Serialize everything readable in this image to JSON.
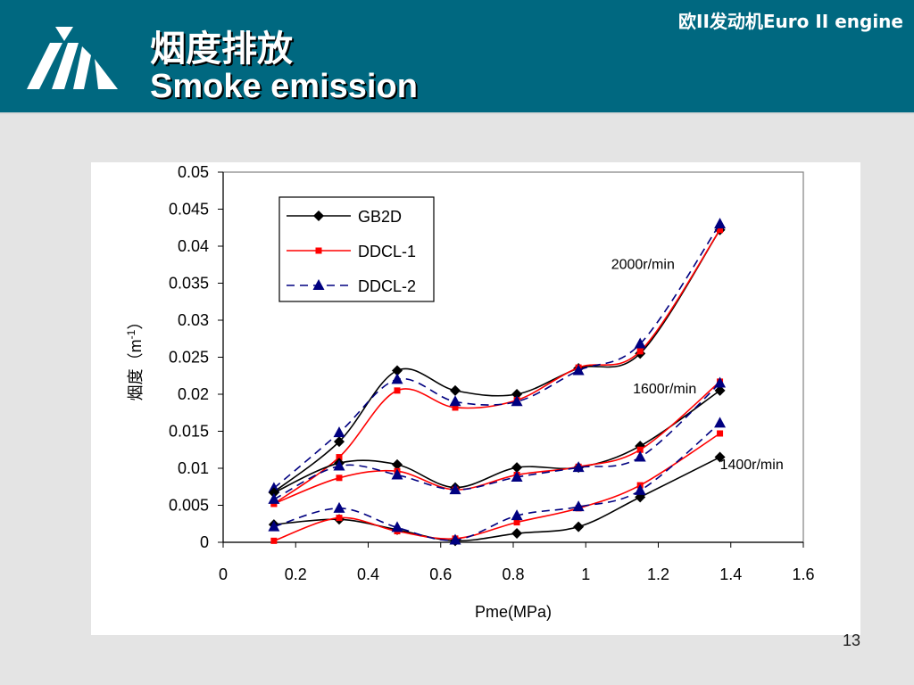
{
  "header": {
    "title_zh": "烟度排放",
    "title_en": "Smoke emission",
    "corner_label": "欧II发动机Euro II engine",
    "background_color": "#006880",
    "logo_icon": "chevron-stripes-logo-icon"
  },
  "page_number": "13",
  "chart_data": {
    "type": "line",
    "xlabel": "Pme(MPa)",
    "ylabel": "烟度（m",
    "ylabel_sup": "-1",
    "ylabel_tail": "）",
    "xlim": [
      0,
      1.6
    ],
    "ylim": [
      0,
      0.05
    ],
    "x_ticks": [
      0,
      0.2,
      0.4,
      0.6,
      0.8,
      1,
      1.2,
      1.4,
      1.6
    ],
    "x_tick_labels": [
      "0",
      "0.2",
      "0.4",
      "0.6",
      "0.8",
      "1",
      "1.2",
      "1.4",
      "1.6"
    ],
    "y_ticks": [
      0,
      0.005,
      0.01,
      0.015,
      0.02,
      0.025,
      0.03,
      0.035,
      0.04,
      0.045,
      0.05
    ],
    "y_tick_labels": [
      "0",
      "0.005",
      "0.01",
      "0.015",
      "0.02",
      "0.025",
      "0.03",
      "0.035",
      "0.04",
      "0.045",
      "0.05"
    ],
    "grid": false,
    "legend_position": "top-left",
    "series_styles": [
      {
        "name": "GB2D",
        "color": "#000000",
        "marker": "diamond",
        "dash": ""
      },
      {
        "name": "DDCL-1",
        "color": "#ff0000",
        "marker": "square",
        "dash": ""
      },
      {
        "name": "DDCL-2",
        "color": "#000080",
        "marker": "triangle",
        "dash": "9,6"
      }
    ],
    "groups": [
      {
        "label": "2000r/min",
        "series": [
          {
            "name": "GB2D",
            "x": [
              0.14,
              0.32,
              0.48,
              0.64,
              0.81,
              0.98,
              1.15,
              1.37
            ],
            "values": [
              0.0068,
              0.0136,
              0.0232,
              0.0205,
              0.02,
              0.0235,
              0.0255,
              0.0422
            ]
          },
          {
            "name": "DDCL-1",
            "x": [
              0.14,
              0.32,
              0.48,
              0.64,
              0.81,
              0.98,
              1.15,
              1.37
            ],
            "values": [
              0.0052,
              0.0115,
              0.0205,
              0.0182,
              0.0192,
              0.0236,
              0.0258,
              0.0422
            ]
          },
          {
            "name": "DDCL-2",
            "x": [
              0.14,
              0.32,
              0.48,
              0.64,
              0.81,
              0.98,
              1.15,
              1.37
            ],
            "values": [
              0.0073,
              0.0148,
              0.022,
              0.019,
              0.019,
              0.0232,
              0.0268,
              0.043
            ]
          }
        ]
      },
      {
        "label": "1600r/min",
        "series": [
          {
            "name": "GB2D",
            "x": [
              0.14,
              0.32,
              0.48,
              0.64,
              0.81,
              0.98,
              1.15,
              1.37
            ],
            "values": [
              0.0067,
              0.0107,
              0.0105,
              0.0074,
              0.0101,
              0.0101,
              0.013,
              0.0205
            ]
          },
          {
            "name": "DDCL-1",
            "x": [
              0.14,
              0.32,
              0.48,
              0.64,
              0.81,
              0.98,
              1.15,
              1.37
            ],
            "values": [
              0.0052,
              0.0087,
              0.0096,
              0.0071,
              0.0091,
              0.0102,
              0.0125,
              0.0217
            ]
          },
          {
            "name": "DDCL-2",
            "x": [
              0.14,
              0.32,
              0.48,
              0.64,
              0.81,
              0.98,
              1.15,
              1.37
            ],
            "values": [
              0.0058,
              0.0103,
              0.0091,
              0.0071,
              0.0088,
              0.0101,
              0.0115,
              0.0215
            ]
          }
        ]
      },
      {
        "label": "1400r/min",
        "series": [
          {
            "name": "GB2D",
            "x": [
              0.14,
              0.32,
              0.48,
              0.64,
              0.81,
              0.98,
              1.15,
              1.37
            ],
            "values": [
              0.0024,
              0.0031,
              0.0017,
              0.0002,
              0.0012,
              0.0021,
              0.0061,
              0.0115
            ]
          },
          {
            "name": "DDCL-1",
            "x": [
              0.14,
              0.32,
              0.48,
              0.64,
              0.81,
              0.98,
              1.15,
              1.37
            ],
            "values": [
              0.0002,
              0.0033,
              0.0015,
              0.0005,
              0.0027,
              0.0046,
              0.0077,
              0.0147
            ]
          },
          {
            "name": "DDCL-2",
            "x": [
              0.14,
              0.32,
              0.48,
              0.64,
              0.81,
              0.98,
              1.15,
              1.37
            ],
            "values": [
              0.0021,
              0.0046,
              0.002,
              0.0003,
              0.0036,
              0.0048,
              0.007,
              0.0161
            ]
          }
        ]
      }
    ]
  }
}
